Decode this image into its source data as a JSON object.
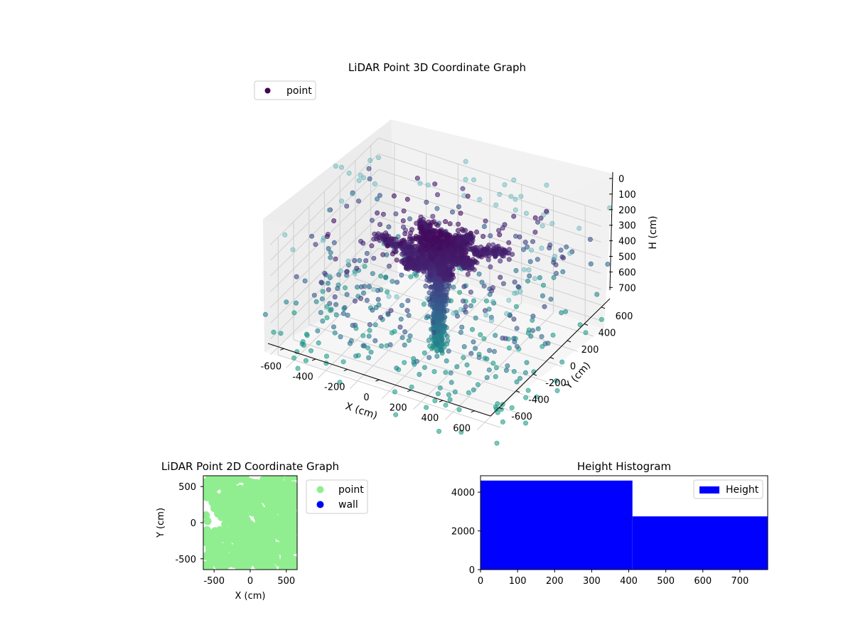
{
  "figure": {
    "title_3d": "LiDAR Point 3D Coordinate Graph",
    "title_2d": "LiDAR Point 2D Coordinate Graph",
    "title_hist": "Height Histogram"
  },
  "colors": {
    "viridis_dark": "#440154",
    "teal": "#2a788e",
    "light_teal": "#7fc7c4",
    "point_2d": "#90ee90",
    "wall_2d": "#0000ff",
    "hist_bar": "#0000ff",
    "pane": "#f2f2f2"
  },
  "chart_data": [
    {
      "type": "scatter",
      "subtype": "3d",
      "title": "LiDAR Point 3D Coordinate Graph",
      "xlabel": "X (cm)",
      "ylabel": "Y (cm)",
      "zlabel": "H (cm)",
      "xlim": [
        -700,
        700
      ],
      "ylim": [
        -700,
        700
      ],
      "zlim": [
        0,
        750
      ],
      "z_inverted": true,
      "x_ticks": [
        "-600",
        "-400",
        "-200",
        "0",
        "200",
        "400",
        "600"
      ],
      "y_ticks": [
        "-600",
        "-400",
        "-200",
        "0",
        "200",
        "400",
        "600"
      ],
      "z_ticks": [
        "0",
        "100",
        "200",
        "300",
        "400",
        "500",
        "600",
        "700"
      ],
      "legend": [
        "point"
      ],
      "legend_position": "upper-left",
      "colormap": "viridis (colored by height)",
      "series": [
        {
          "name": "point",
          "description": "tree-shaped point cloud: trunk near x≈0,y≈0 spanning heights 0–600 cm, canopy near H≈0–200 cm, plus scattered noise over the full volume"
        }
      ]
    },
    {
      "type": "scatter",
      "title": "LiDAR Point 2D Coordinate Graph",
      "xlabel": "X (cm)",
      "ylabel": "Y (cm)",
      "xlim": [
        -650,
        650
      ],
      "ylim": [
        -650,
        650
      ],
      "x_ticks": [
        "-500",
        "0",
        "500"
      ],
      "y_ticks": [
        "500",
        "0",
        "-500"
      ],
      "legend": [
        "point",
        "wall"
      ],
      "legend_position": "outside-right",
      "series": [
        {
          "name": "point",
          "description": "dense light-green coverage of nearly the whole square region"
        },
        {
          "name": "wall",
          "description": "no visible wall points"
        }
      ]
    },
    {
      "type": "bar",
      "subtype": "histogram",
      "title": "Height Histogram",
      "bins": [
        [
          0,
          410
        ],
        [
          410,
          775
        ]
      ],
      "values": [
        4600,
        2750
      ],
      "xlim": [
        0,
        775
      ],
      "ylim": [
        0,
        4850
      ],
      "x_ticks": [
        "0",
        "100",
        "200",
        "300",
        "400",
        "500",
        "600",
        "700"
      ],
      "y_ticks": [
        "0",
        "2000",
        "4000"
      ],
      "legend": [
        "Height"
      ],
      "legend_position": "upper-right",
      "series": [
        {
          "name": "Height",
          "values": [
            4600,
            2750
          ]
        }
      ]
    }
  ]
}
